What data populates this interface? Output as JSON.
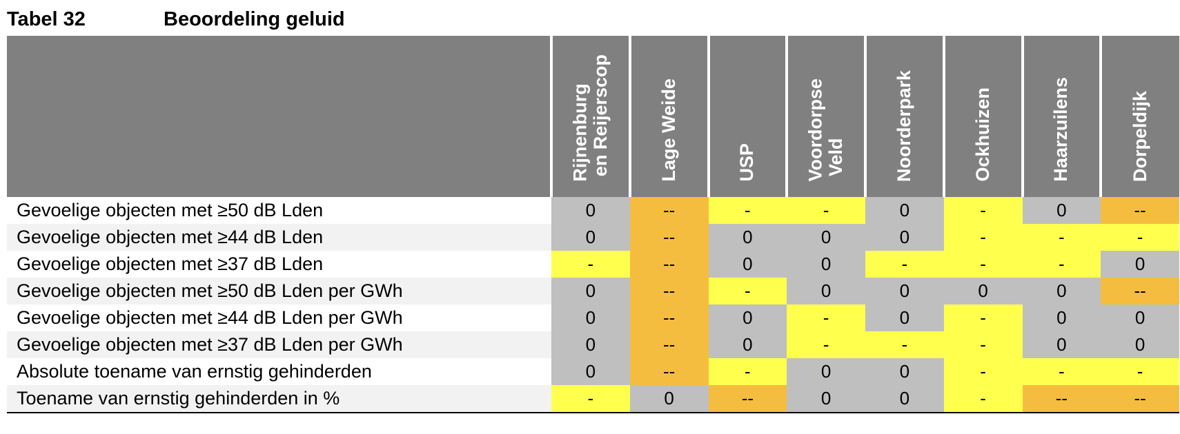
{
  "caption": {
    "number": "Tabel 32",
    "title": "Beoordeling geluid"
  },
  "columns": [
    "Rijnenburg\n en Reijerscop",
    "Lage Weide",
    "USP",
    "Voordorpse\n Veld",
    "Noorderpark",
    "Ockhuizen",
    "Haarzuilens",
    "Dorpeldijk"
  ],
  "colors": {
    "header": "#808080",
    "gray": "#bfbfbf",
    "yellow": "#ffff4d",
    "orange": "#f5bd3f"
  },
  "rows": [
    {
      "label": "Gevoelige objecten met ≥50 dB Lden",
      "cells": [
        {
          "v": "0",
          "c": "gray"
        },
        {
          "v": "--",
          "c": "orange"
        },
        {
          "v": "-",
          "c": "yellow"
        },
        {
          "v": "-",
          "c": "yellow"
        },
        {
          "v": "0",
          "c": "gray"
        },
        {
          "v": "-",
          "c": "yellow"
        },
        {
          "v": "0",
          "c": "gray"
        },
        {
          "v": "--",
          "c": "orange"
        }
      ]
    },
    {
      "label": "Gevoelige objecten met ≥44 dB Lden",
      "cells": [
        {
          "v": "0",
          "c": "gray"
        },
        {
          "v": "--",
          "c": "orange"
        },
        {
          "v": "0",
          "c": "gray"
        },
        {
          "v": "0",
          "c": "gray"
        },
        {
          "v": "0",
          "c": "gray"
        },
        {
          "v": "-",
          "c": "yellow"
        },
        {
          "v": "-",
          "c": "yellow"
        },
        {
          "v": "-",
          "c": "yellow"
        }
      ]
    },
    {
      "label": "Gevoelige objecten met ≥37 dB Lden",
      "cells": [
        {
          "v": "-",
          "c": "yellow"
        },
        {
          "v": "--",
          "c": "orange"
        },
        {
          "v": "0",
          "c": "gray"
        },
        {
          "v": "0",
          "c": "gray"
        },
        {
          "v": "-",
          "c": "yellow"
        },
        {
          "v": "-",
          "c": "yellow"
        },
        {
          "v": "-",
          "c": "yellow"
        },
        {
          "v": "0",
          "c": "gray"
        }
      ]
    },
    {
      "label": "Gevoelige objecten met ≥50 dB Lden per GWh",
      "cells": [
        {
          "v": "0",
          "c": "gray"
        },
        {
          "v": "--",
          "c": "orange"
        },
        {
          "v": "-",
          "c": "yellow"
        },
        {
          "v": "0",
          "c": "gray"
        },
        {
          "v": "0",
          "c": "gray"
        },
        {
          "v": "0",
          "c": "gray"
        },
        {
          "v": "0",
          "c": "gray"
        },
        {
          "v": "--",
          "c": "orange"
        }
      ]
    },
    {
      "label": "Gevoelige objecten met ≥44 dB Lden per GWh",
      "cells": [
        {
          "v": "0",
          "c": "gray"
        },
        {
          "v": "--",
          "c": "orange"
        },
        {
          "v": "0",
          "c": "gray"
        },
        {
          "v": "-",
          "c": "yellow"
        },
        {
          "v": "0",
          "c": "gray"
        },
        {
          "v": "-",
          "c": "yellow"
        },
        {
          "v": "0",
          "c": "gray"
        },
        {
          "v": "0",
          "c": "gray"
        }
      ]
    },
    {
      "label": "Gevoelige objecten met ≥37 dB Lden per GWh",
      "cells": [
        {
          "v": "0",
          "c": "gray"
        },
        {
          "v": "--",
          "c": "orange"
        },
        {
          "v": "0",
          "c": "gray"
        },
        {
          "v": "-",
          "c": "yellow"
        },
        {
          "v": "-",
          "c": "yellow"
        },
        {
          "v": "-",
          "c": "yellow"
        },
        {
          "v": "0",
          "c": "gray"
        },
        {
          "v": "0",
          "c": "gray"
        }
      ]
    },
    {
      "label": "Absolute toename van ernstig gehinderden",
      "cells": [
        {
          "v": "0",
          "c": "gray"
        },
        {
          "v": "--",
          "c": "orange"
        },
        {
          "v": "-",
          "c": "yellow"
        },
        {
          "v": "0",
          "c": "gray"
        },
        {
          "v": "0",
          "c": "gray"
        },
        {
          "v": "-",
          "c": "yellow"
        },
        {
          "v": "-",
          "c": "yellow"
        },
        {
          "v": "-",
          "c": "yellow"
        }
      ]
    },
    {
      "label": "Toename van ernstig gehinderden in %",
      "cells": [
        {
          "v": "-",
          "c": "yellow"
        },
        {
          "v": "0",
          "c": "gray"
        },
        {
          "v": "--",
          "c": "orange"
        },
        {
          "v": "0",
          "c": "gray"
        },
        {
          "v": "0",
          "c": "gray"
        },
        {
          "v": "-",
          "c": "yellow"
        },
        {
          "v": "--",
          "c": "orange"
        },
        {
          "v": "--",
          "c": "orange"
        }
      ]
    }
  ]
}
